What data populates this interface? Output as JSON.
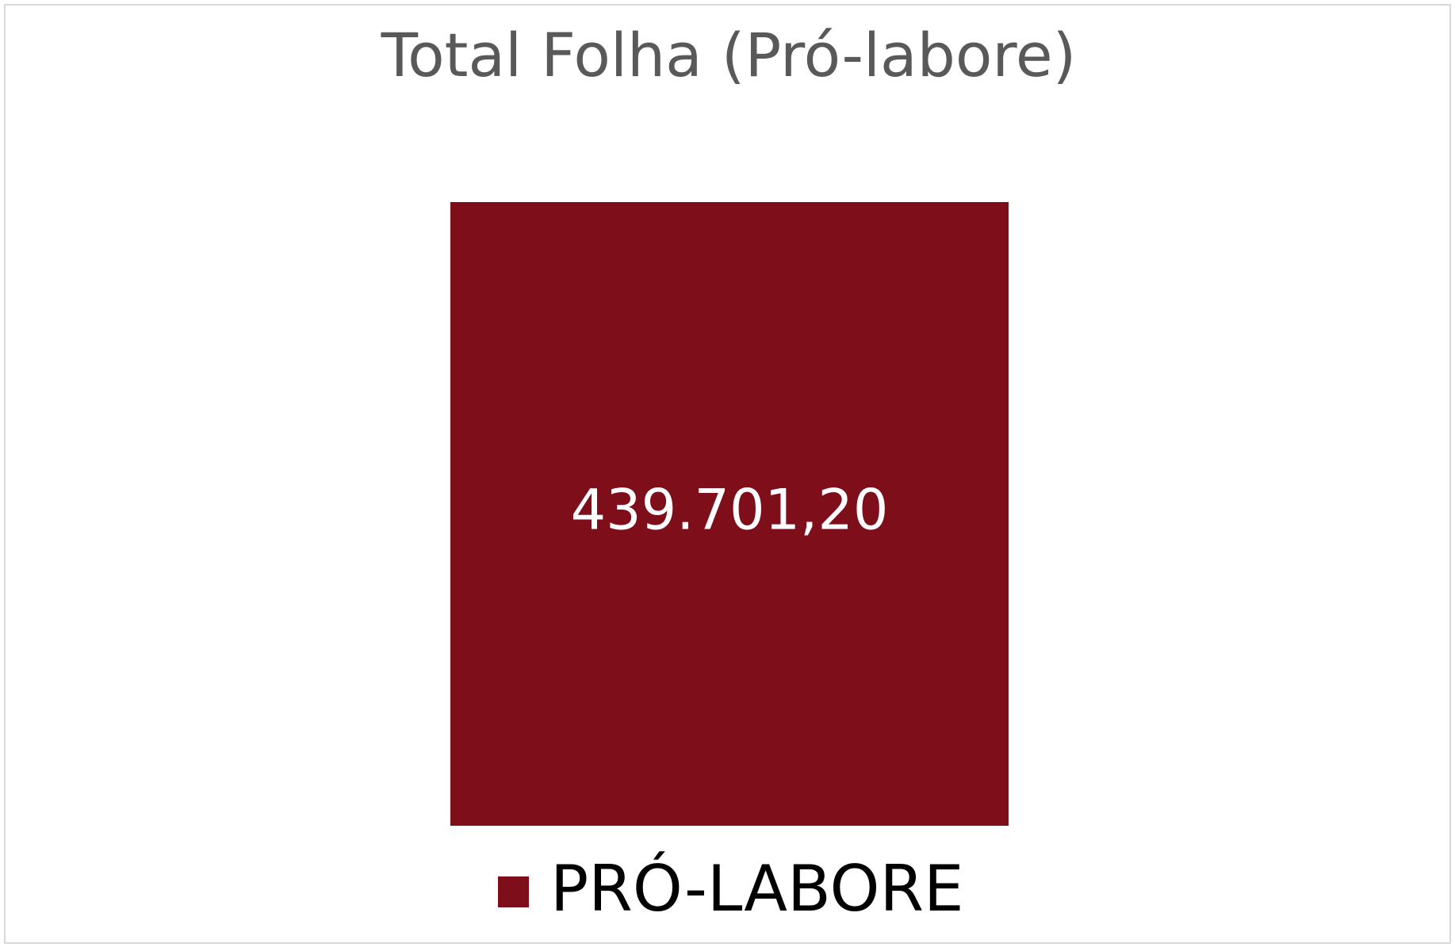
{
  "chart_data": {
    "type": "bar",
    "title": "Total Folha (Pró-labore)",
    "categories": [
      "PRÓ-LABORE"
    ],
    "series": [
      {
        "name": "PRÓ-LABORE",
        "color": "#7e0e1a",
        "values": [
          439701.2
        ],
        "value_labels": [
          "439.701,20"
        ]
      }
    ]
  }
}
